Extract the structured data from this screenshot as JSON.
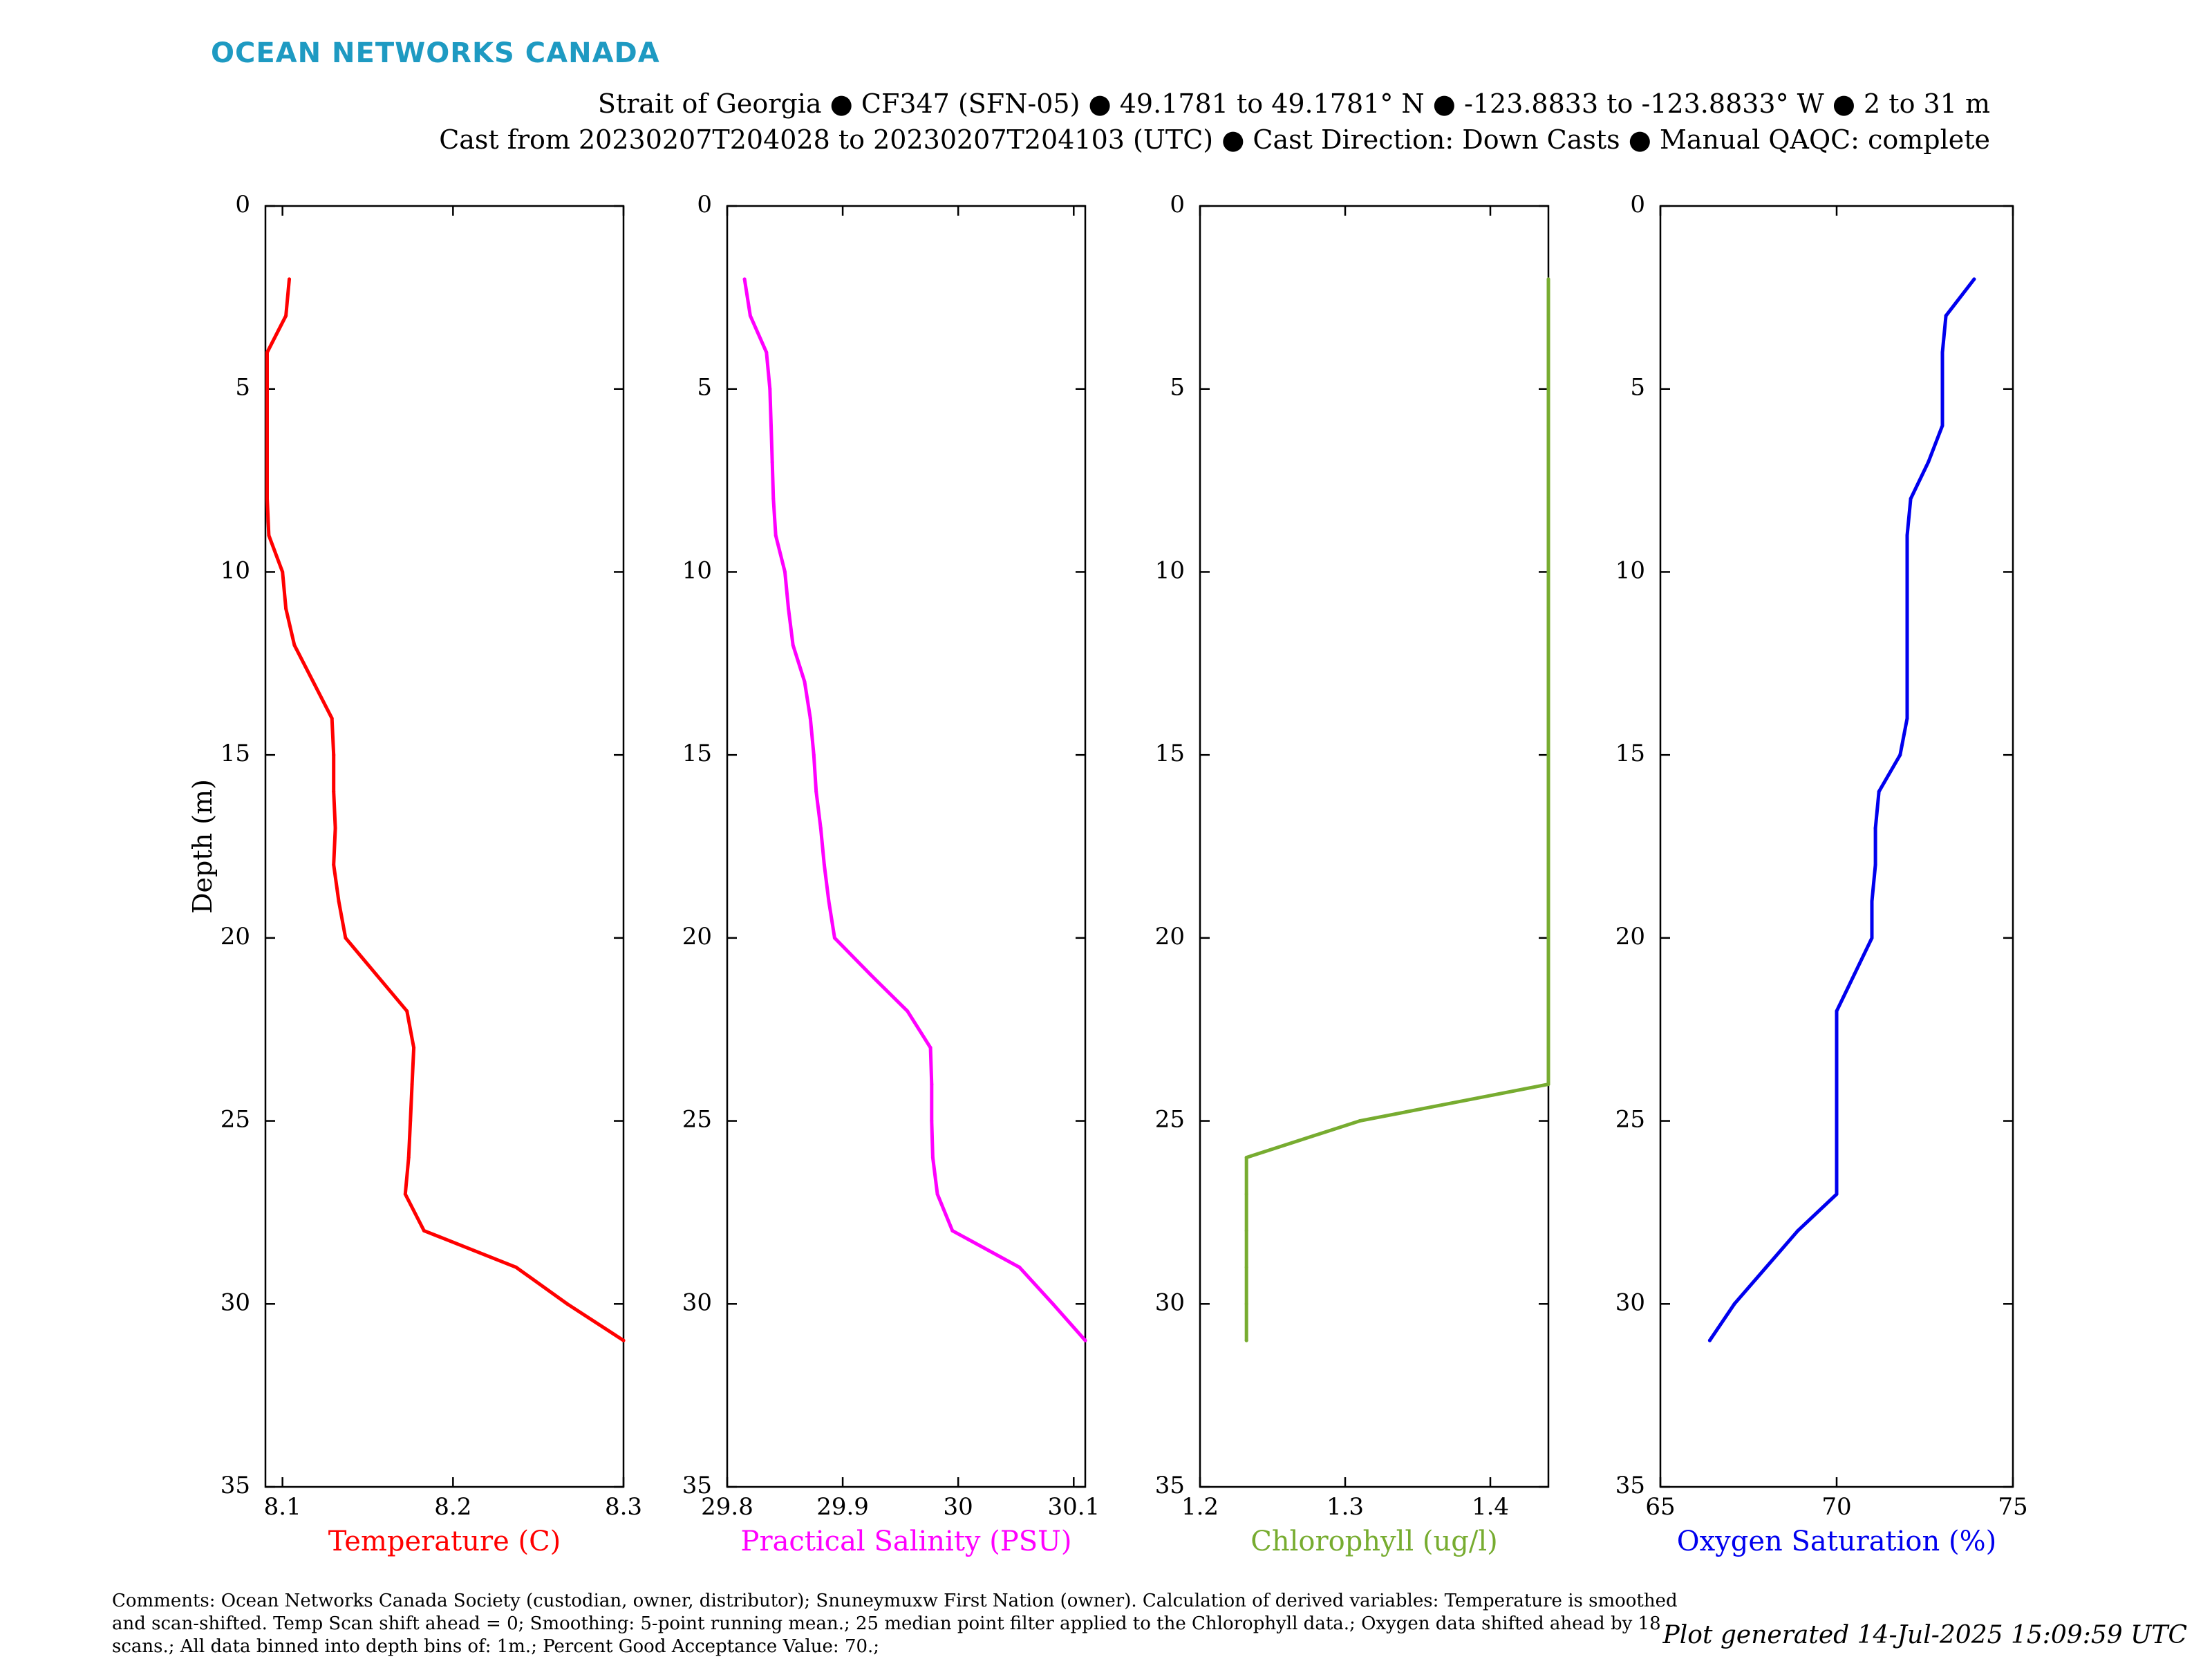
{
  "header": {
    "logo": "OCEAN NETWORKS CANADA",
    "line1": "Strait of Georgia ● CF347 (SFN-05) ● 49.1781 to 49.1781° N ● -123.8833 to -123.8833° W ● 2 to 31 m",
    "line2": "Cast from 20230207T204028 to 20230207T204103 (UTC) ● Cast Direction: Down Casts ● Manual QAQC: complete"
  },
  "footer": {
    "comments": "Comments: Ocean Networks Canada Society (custodian, owner, distributor); Snuneymuxw First Nation (owner). Calculation of derived variables: Temperature is smoothed and scan-shifted. Temp Scan shift ahead = 0; Smoothing: 5-point running mean.; 25 median point filter applied to the Chlorophyll data.; Oxygen data shifted ahead by 18 scans.; All data binned into depth bins of: 1m.; Percent Good Acceptance Value: 70.;",
    "generated": "Plot generated 14-Jul-2025 15:09:59 UTC"
  },
  "chart_data": [
    {
      "type": "line",
      "xlabel": "Temperature (C)",
      "ylabel": "Depth (m)",
      "color": "#ff0000",
      "xlim": [
        8.09,
        8.3
      ],
      "xticks": [
        8.1,
        8.2,
        8.3
      ],
      "xticklabels": [
        "8.1",
        "8.2",
        "8.3"
      ],
      "ylim": [
        0,
        35
      ],
      "yticks": [
        0,
        5,
        10,
        15,
        20,
        25,
        30,
        35
      ],
      "y_reversed": true,
      "depth": [
        2,
        3,
        4,
        5,
        6,
        7,
        8,
        9,
        10,
        11,
        12,
        13,
        14,
        15,
        16,
        17,
        18,
        19,
        20,
        21,
        22,
        23,
        24,
        25,
        26,
        27,
        28,
        29,
        30,
        31
      ],
      "values": [
        8.104,
        8.102,
        8.091,
        8.091,
        8.091,
        8.091,
        8.091,
        8.092,
        8.1,
        8.102,
        8.107,
        8.118,
        8.129,
        8.13,
        8.13,
        8.131,
        8.13,
        8.133,
        8.137,
        8.155,
        8.173,
        8.177,
        8.176,
        8.175,
        8.174,
        8.172,
        8.183,
        8.237,
        8.267,
        8.3
      ]
    },
    {
      "type": "line",
      "xlabel": "Practical Salinity (PSU)",
      "ylabel": "",
      "color": "#ff00ff",
      "xlim": [
        29.8,
        30.11
      ],
      "xticks": [
        29.8,
        29.9,
        30,
        30.1
      ],
      "xticklabels": [
        "29.8",
        "29.9",
        "30",
        "30.1"
      ],
      "ylim": [
        0,
        35
      ],
      "yticks": [
        0,
        5,
        10,
        15,
        20,
        25,
        30,
        35
      ],
      "y_reversed": true,
      "depth": [
        2,
        3,
        4,
        5,
        6,
        7,
        8,
        9,
        10,
        11,
        12,
        13,
        14,
        15,
        16,
        17,
        18,
        19,
        20,
        21,
        22,
        23,
        24,
        25,
        26,
        27,
        28,
        29,
        30,
        31
      ],
      "values": [
        29.815,
        29.82,
        29.834,
        29.837,
        29.838,
        29.839,
        29.84,
        29.842,
        29.85,
        29.853,
        29.857,
        29.867,
        29.872,
        29.875,
        29.877,
        29.881,
        29.884,
        29.888,
        29.893,
        29.924,
        29.956,
        29.976,
        29.977,
        29.977,
        29.978,
        29.982,
        29.995,
        30.053,
        30.082,
        30.11
      ]
    },
    {
      "type": "line",
      "xlabel": "Chlorophyll (ug/l)",
      "ylabel": "",
      "color": "#77ac30",
      "xlim": [
        1.2,
        1.44
      ],
      "xticks": [
        1.2,
        1.3,
        1.4
      ],
      "xticklabels": [
        "1.2",
        "1.3",
        "1.4"
      ],
      "ylim": [
        0,
        35
      ],
      "yticks": [
        0,
        5,
        10,
        15,
        20,
        25,
        30,
        35
      ],
      "y_reversed": true,
      "depth": [
        2,
        3,
        4,
        5,
        6,
        7,
        8,
        9,
        10,
        11,
        12,
        13,
        14,
        15,
        16,
        17,
        18,
        19,
        20,
        21,
        22,
        23,
        24,
        25,
        26,
        27,
        28,
        29,
        30,
        31
      ],
      "values": [
        1.44,
        1.44,
        1.44,
        1.44,
        1.44,
        1.44,
        1.44,
        1.44,
        1.44,
        1.44,
        1.44,
        1.44,
        1.44,
        1.44,
        1.44,
        1.44,
        1.44,
        1.44,
        1.44,
        1.44,
        1.44,
        1.44,
        1.44,
        1.31,
        1.232,
        1.232,
        1.232,
        1.232,
        1.232,
        1.232
      ]
    },
    {
      "type": "line",
      "xlabel": "Oxygen Saturation (%)",
      "ylabel": "",
      "color": "#0000ee",
      "xlim": [
        65,
        75
      ],
      "xticks": [
        65,
        70,
        75
      ],
      "xticklabels": [
        "65",
        "70",
        "75"
      ],
      "ylim": [
        0,
        35
      ],
      "yticks": [
        0,
        5,
        10,
        15,
        20,
        25,
        30,
        35
      ],
      "y_reversed": true,
      "depth": [
        2,
        3,
        4,
        5,
        6,
        7,
        8,
        9,
        10,
        11,
        12,
        13,
        14,
        15,
        16,
        17,
        18,
        19,
        20,
        21,
        22,
        23,
        24,
        25,
        26,
        27,
        28,
        29,
        30,
        31
      ],
      "values": [
        73.9,
        73.1,
        73.0,
        73.0,
        73.0,
        72.6,
        72.1,
        72.0,
        72.0,
        72.0,
        72.0,
        72.0,
        72.0,
        71.8,
        71.2,
        71.1,
        71.1,
        71.0,
        71.0,
        70.5,
        70.0,
        70.0,
        70.0,
        70.0,
        70.0,
        70.0,
        68.9,
        68.0,
        67.1,
        66.4
      ]
    }
  ]
}
